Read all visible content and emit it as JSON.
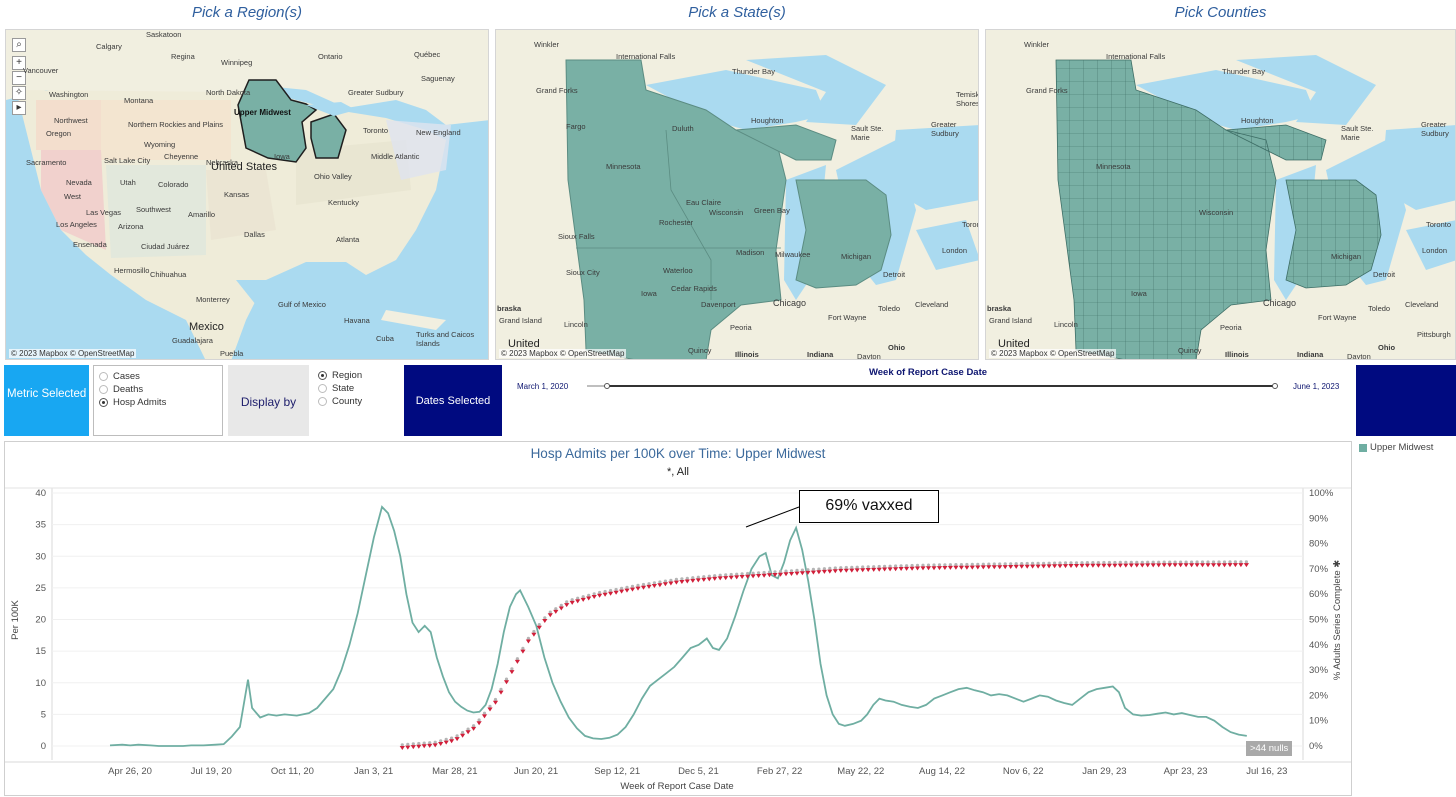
{
  "maps": {
    "region": {
      "title": "Pick a Region(s)",
      "credit": "© 2023 Mapbox © OpenStreetMap",
      "highlight_label": "Upper Midwest",
      "labels": [
        "Saskatoon",
        "Calgary",
        "Regina",
        "Winnipeg",
        "Ontario",
        "Québec",
        "Vancouver",
        "Saguenay",
        "Greater Sudbury",
        "Toronto",
        "New England",
        "Washington",
        "Montana",
        "North Dakota",
        "Northwest",
        "Northern Rockies and Plains",
        "Oregon",
        "Wyoming",
        "Iowa",
        "Nebraska",
        "Ohio Valley",
        "Middle Atlantic",
        "Sacramento",
        "Salt Lake City",
        "Cheyenne",
        "United States",
        "West",
        "Nevada",
        "Utah",
        "Colorado",
        "Kansas",
        "Kentucky",
        "Las Vegas",
        "Los Angeles",
        "Arizona",
        "Southwest",
        "Amarillo",
        "Dallas",
        "Atlanta",
        "Ciudad Juárez",
        "Ensenada",
        "Hermosillo",
        "Chihuahua",
        "Monterrey",
        "Mexico",
        "Guadalajara",
        "Puebla",
        "Havana",
        "Gulf of Mexico",
        "Turks and Caicos Islands",
        "Cuba"
      ]
    },
    "state": {
      "title": "Pick a State(s)",
      "credit": "© 2023 Mapbox © OpenStreetMap",
      "labels": [
        "Winkler",
        "International Falls",
        "Thunder Bay",
        "Grand Forks",
        "Fargo",
        "Duluth",
        "Houghton",
        "Sault Ste. Marie",
        "Greater Sudbury",
        "Minnesota",
        "Wisconsin",
        "Michigan",
        "Iowa",
        "Eau Claire",
        "Green Bay",
        "Rochester",
        "Madison",
        "Milwaukee",
        "Sioux Falls",
        "Sioux City",
        "Waterloo",
        "Cedar Rapids",
        "Davenport",
        "Chicago",
        "Detroit",
        "Toledo",
        "Cleveland",
        "Fort Wayne",
        "Peoria",
        "Grand Island",
        "Lincoln",
        "Quincy",
        "Illinois",
        "Indiana",
        "Ohio",
        "Dayton",
        "United",
        "braska",
        "Temiskaming Shores",
        "Toronto",
        "London"
      ]
    },
    "county": {
      "title": "Pick Counties",
      "credit": "© 2023 Mapbox © OpenStreetMap",
      "labels": [
        "Winkler",
        "International Falls",
        "Thunder Bay",
        "Grand Forks",
        "Houghton",
        "Sault Ste. Marie",
        "Greater Sudbury",
        "Minnesota",
        "Wisconsin",
        "Michigan",
        "Iowa",
        "Chicago",
        "Detroit",
        "Toledo",
        "Cleveland",
        "Fort Wayne",
        "Peoria",
        "Grand Island",
        "Lincoln",
        "Quincy",
        "Illinois",
        "Indiana",
        "Ohio",
        "Dayton",
        "Pittsburgh",
        "United",
        "braska",
        "London",
        "Toronto"
      ]
    }
  },
  "controls": {
    "metric_label": "Metric Selected",
    "metric_options": [
      {
        "label": "Cases",
        "selected": false
      },
      {
        "label": "Deaths",
        "selected": false
      },
      {
        "label": "Hosp Admits",
        "selected": true
      }
    ],
    "display_label": "Display by",
    "display_options": [
      {
        "label": "Region",
        "selected": true
      },
      {
        "label": "State",
        "selected": false
      },
      {
        "label": "County",
        "selected": false
      }
    ],
    "dates_label": "Dates Selected",
    "slider_title": "Week of Report Case Date",
    "slider_start": "March 1, 2020",
    "slider_end": "June 1, 2023"
  },
  "chart_data": {
    "type": "line",
    "title": "Hosp Admits per 100K over Time: Upper Midwest",
    "subtitle": "*,  All",
    "xlabel": "Week of Report Case Date",
    "ylabel": "Per 100K",
    "y2label": "% Adults Series Complete ✱",
    "legend": "Upper Midwest",
    "legend_position": "top-right",
    "ylim": [
      0,
      40
    ],
    "y2lim": [
      0,
      100
    ],
    "yticks": [
      0,
      5,
      10,
      15,
      20,
      25,
      30,
      35,
      40
    ],
    "y2ticks": [
      "0%",
      "10%",
      "20%",
      "30%",
      "40%",
      "50%",
      "60%",
      "70%",
      "80%",
      "90%",
      "100%"
    ],
    "xticks": [
      "Apr 26, 20",
      "Jul 19, 20",
      "Oct 11, 20",
      "Jan 3, 21",
      "Mar 28, 21",
      "Jun 20, 21",
      "Sep 12, 21",
      "Dec 5, 21",
      "Feb 27, 22",
      "May 22, 22",
      "Aug 14, 22",
      "Nov 6, 22",
      "Jan 29, 23",
      "Apr 23, 23",
      "Jul 16, 23"
    ],
    "annotation": "69% vaxxed",
    "nulls_indicator": ">44 nulls",
    "colors": {
      "series": "#6faea2",
      "vax_marker": "#d11f3a"
    },
    "series": [
      {
        "name": "Upper Midwest",
        "axis": "left",
        "points": [
          [
            0.0,
            0.1
          ],
          [
            0.3,
            0.2
          ],
          [
            0.5,
            0.1
          ],
          [
            0.7,
            0.2
          ],
          [
            1.0,
            0.1
          ],
          [
            1.2,
            0.0
          ],
          [
            1.5,
            0.0
          ],
          [
            1.8,
            0.0
          ],
          [
            2.0,
            0.1
          ],
          [
            2.3,
            0.1
          ],
          [
            2.6,
            0.2
          ],
          [
            2.8,
            0.3
          ],
          [
            3.0,
            1.5
          ],
          [
            3.2,
            3.0
          ],
          [
            3.4,
            10.5
          ],
          [
            3.5,
            6.0
          ],
          [
            3.7,
            4.5
          ],
          [
            3.9,
            5.0
          ],
          [
            4.1,
            4.8
          ],
          [
            4.3,
            5.0
          ],
          [
            4.6,
            4.8
          ],
          [
            4.9,
            5.2
          ],
          [
            5.1,
            6.0
          ],
          [
            5.3,
            7.5
          ],
          [
            5.5,
            9.0
          ],
          [
            5.7,
            12.0
          ],
          [
            5.9,
            16.0
          ],
          [
            6.1,
            21.0
          ],
          [
            6.3,
            27.0
          ],
          [
            6.5,
            33.0
          ],
          [
            6.7,
            37.8
          ],
          [
            6.85,
            36.8
          ],
          [
            7.0,
            34.0
          ],
          [
            7.15,
            30.0
          ],
          [
            7.3,
            24.0
          ],
          [
            7.45,
            19.5
          ],
          [
            7.6,
            18.0
          ],
          [
            7.75,
            19.0
          ],
          [
            7.9,
            18.0
          ],
          [
            8.05,
            14.0
          ],
          [
            8.2,
            11.0
          ],
          [
            8.35,
            8.5
          ],
          [
            8.5,
            7.0
          ],
          [
            8.65,
            6.2
          ],
          [
            8.8,
            5.6
          ],
          [
            8.95,
            5.3
          ],
          [
            9.1,
            5.4
          ],
          [
            9.25,
            6.5
          ],
          [
            9.4,
            9.0
          ],
          [
            9.55,
            13.0
          ],
          [
            9.7,
            18.0
          ],
          [
            9.85,
            22.0
          ],
          [
            10.0,
            24.0
          ],
          [
            10.1,
            24.6
          ],
          [
            10.3,
            22.0
          ],
          [
            10.5,
            19.0
          ],
          [
            10.7,
            14.0
          ],
          [
            10.9,
            10.0
          ],
          [
            11.1,
            7.0
          ],
          [
            11.3,
            4.5
          ],
          [
            11.5,
            2.8
          ],
          [
            11.7,
            1.6
          ],
          [
            11.9,
            1.2
          ],
          [
            12.1,
            1.1
          ],
          [
            12.3,
            1.3
          ],
          [
            12.5,
            1.8
          ],
          [
            12.7,
            3.0
          ],
          [
            12.9,
            5.0
          ],
          [
            13.1,
            7.5
          ],
          [
            13.3,
            9.5
          ],
          [
            13.5,
            10.5
          ],
          [
            13.7,
            11.5
          ],
          [
            13.9,
            12.5
          ],
          [
            14.1,
            14.0
          ],
          [
            14.3,
            15.5
          ],
          [
            14.5,
            16.0
          ],
          [
            14.7,
            17.0
          ],
          [
            14.85,
            15.5
          ],
          [
            15.0,
            15.2
          ],
          [
            15.2,
            17.0
          ],
          [
            15.4,
            20.5
          ],
          [
            15.6,
            24.5
          ],
          [
            15.8,
            28.0
          ],
          [
            16.0,
            30.0
          ],
          [
            16.15,
            30.5
          ],
          [
            16.3,
            27.0
          ],
          [
            16.45,
            26.5
          ],
          [
            16.6,
            29.0
          ],
          [
            16.75,
            32.5
          ],
          [
            16.9,
            34.5
          ],
          [
            17.05,
            31.0
          ],
          [
            17.2,
            26.0
          ],
          [
            17.35,
            20.0
          ],
          [
            17.5,
            13.0
          ],
          [
            17.65,
            8.0
          ],
          [
            17.8,
            5.0
          ],
          [
            17.95,
            3.5
          ],
          [
            18.1,
            3.2
          ],
          [
            18.3,
            3.5
          ],
          [
            18.5,
            4.0
          ],
          [
            18.65,
            5.0
          ],
          [
            18.8,
            6.5
          ],
          [
            18.95,
            7.5
          ],
          [
            19.1,
            7.2
          ],
          [
            19.3,
            7.0
          ],
          [
            19.5,
            6.5
          ],
          [
            19.7,
            6.2
          ],
          [
            19.9,
            6.0
          ],
          [
            20.1,
            6.5
          ],
          [
            20.3,
            7.5
          ],
          [
            20.5,
            8.0
          ],
          [
            20.7,
            8.5
          ],
          [
            20.9,
            9.0
          ],
          [
            21.1,
            9.2
          ],
          [
            21.3,
            8.8
          ],
          [
            21.5,
            8.5
          ],
          [
            21.7,
            8.0
          ],
          [
            21.9,
            8.2
          ],
          [
            22.1,
            8.0
          ],
          [
            22.3,
            7.5
          ],
          [
            22.5,
            7.0
          ],
          [
            22.7,
            7.5
          ],
          [
            22.9,
            8.0
          ],
          [
            23.1,
            7.8
          ],
          [
            23.3,
            7.2
          ],
          [
            23.5,
            6.8
          ],
          [
            23.7,
            6.5
          ],
          [
            23.9,
            7.5
          ],
          [
            24.1,
            8.5
          ],
          [
            24.3,
            9.0
          ],
          [
            24.5,
            9.2
          ],
          [
            24.7,
            9.4
          ],
          [
            24.85,
            8.5
          ],
          [
            25.0,
            6.0
          ],
          [
            25.2,
            5.0
          ],
          [
            25.4,
            4.8
          ],
          [
            25.6,
            4.9
          ],
          [
            25.8,
            5.1
          ],
          [
            26.0,
            5.3
          ],
          [
            26.2,
            5.0
          ],
          [
            26.4,
            5.2
          ],
          [
            26.6,
            4.9
          ],
          [
            26.8,
            4.6
          ],
          [
            27.0,
            4.6
          ],
          [
            27.2,
            4.0
          ],
          [
            27.4,
            3.0
          ],
          [
            27.6,
            2.2
          ],
          [
            27.8,
            1.8
          ],
          [
            28.0,
            1.6
          ]
        ]
      },
      {
        "name": "% Adults Series Complete",
        "axis": "right",
        "values_pct": {
          "start_week": 7.2,
          "end_week": 28.0,
          "curve": [
            [
              7.2,
              0.0
            ],
            [
              8.0,
              1.0
            ],
            [
              8.5,
              3.0
            ],
            [
              9.0,
              8.0
            ],
            [
              9.5,
              18.0
            ],
            [
              9.9,
              30.0
            ],
            [
              10.3,
              42.0
            ],
            [
              10.8,
              52.0
            ],
            [
              11.3,
              57.0
            ],
            [
              12.0,
              60.0
            ],
            [
              13.0,
              63.0
            ],
            [
              14.0,
              65.5
            ],
            [
              15.0,
              67.0
            ],
            [
              16.0,
              68.0
            ],
            [
              17.0,
              69.0
            ],
            [
              18.0,
              70.0
            ],
            [
              19.0,
              70.5
            ],
            [
              20.0,
              71.0
            ],
            [
              22.0,
              71.5
            ],
            [
              24.0,
              72.0
            ],
            [
              26.0,
              72.2
            ],
            [
              28.0,
              72.3
            ]
          ]
        }
      }
    ]
  }
}
